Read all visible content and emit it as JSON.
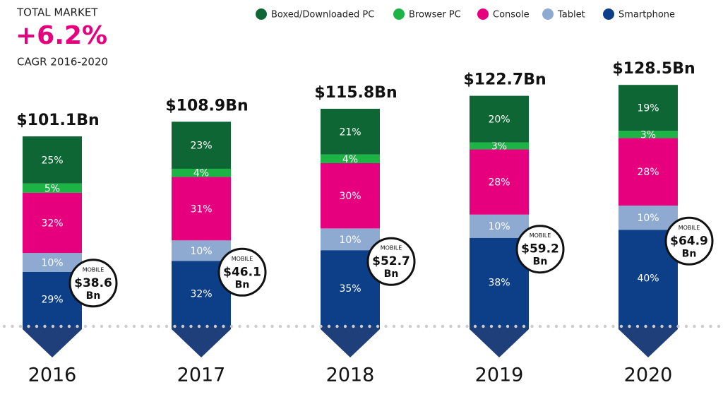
{
  "chart_data": {
    "type": "bar",
    "stacked": true,
    "title": "TOTAL MARKET",
    "headline": "+6.2%",
    "subtitle": "CAGR 2016-2020",
    "categories": [
      "2016",
      "2017",
      "2018",
      "2019",
      "2020"
    ],
    "series": [
      {
        "name": "Boxed/Downloaded PC",
        "color": "#0e6634",
        "values": [
          25,
          23,
          21,
          20,
          19
        ],
        "value_labels": [
          "25%",
          "23%",
          "21%",
          "20%",
          "19%"
        ]
      },
      {
        "name": "Browser PC",
        "color": "#1db446",
        "values": [
          5,
          4,
          4,
          3,
          3
        ],
        "value_labels": [
          "5%",
          "4%",
          "4%",
          "3%",
          "3%"
        ]
      },
      {
        "name": "Console",
        "color": "#e6007e",
        "values": [
          32,
          31,
          30,
          28,
          28
        ],
        "value_labels": [
          "32%",
          "31%",
          "30%",
          "28%",
          "28%"
        ]
      },
      {
        "name": "Tablet",
        "color": "#8eaad0",
        "values": [
          10,
          10,
          10,
          10,
          10
        ],
        "value_labels": [
          "10%",
          "10%",
          "10%",
          "10%",
          "10%"
        ]
      },
      {
        "name": "Smartphone",
        "color": "#0c3f87",
        "values": [
          29,
          32,
          35,
          38,
          40
        ],
        "value_labels": [
          "29%",
          "32%",
          "35%",
          "38%",
          "40%"
        ]
      }
    ],
    "totals": {
      "values": [
        101.1,
        108.9,
        115.8,
        122.7,
        128.5
      ],
      "value_labels": [
        "$101.1Bn",
        "$108.9Bn",
        "$115.8Bn",
        "$122.7Bn",
        "$128.5Bn"
      ]
    },
    "mobile": {
      "label": "MOBILE",
      "unit": "Bn",
      "values": [
        38.6,
        46.1,
        52.7,
        59.2,
        64.9
      ],
      "value_labels": [
        "$38.6",
        "$46.1",
        "$52.7",
        "$59.2",
        "$64.9"
      ]
    },
    "legend": "top"
  }
}
